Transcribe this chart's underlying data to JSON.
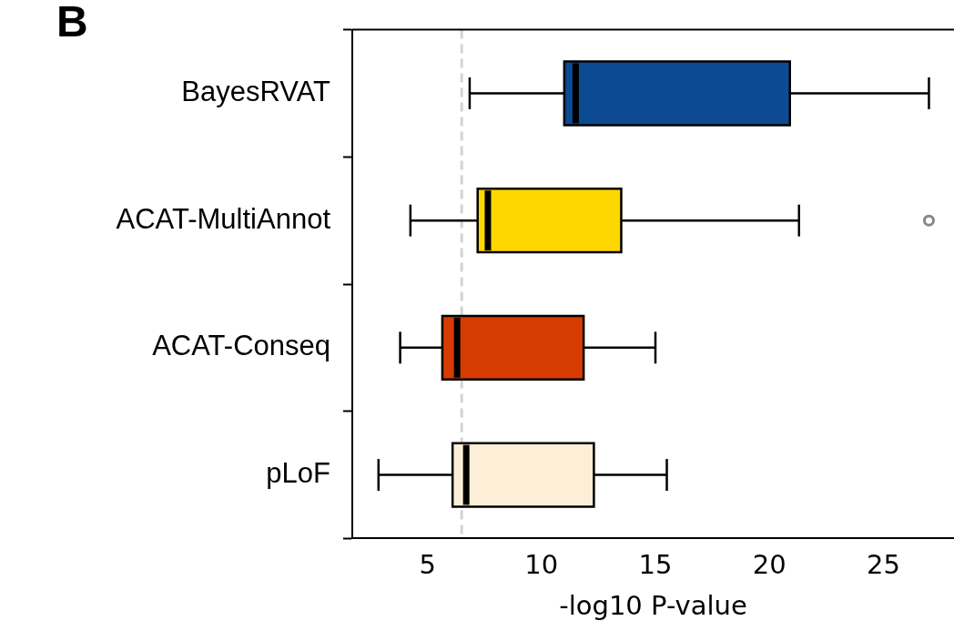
{
  "chart_data": {
    "type": "box",
    "orientation": "horizontal",
    "xlabel": "-log10 P-value",
    "categories": [
      "BayesRVAT",
      "ACAT-MultiAnnot",
      "ACAT-Conseq",
      "pLoF"
    ],
    "colors": [
      "#0d4a94",
      "#ffd700",
      "#d63c00",
      "#fdefd7"
    ],
    "boxes": [
      {
        "low": 6.85,
        "q1": 11.0,
        "median": 11.5,
        "q3": 20.9,
        "high": 27.0
      },
      {
        "low": 4.25,
        "q1": 7.2,
        "median": 7.65,
        "q3": 13.5,
        "high": 21.3,
        "outliers": [
          27.0
        ]
      },
      {
        "low": 3.8,
        "q1": 5.65,
        "median": 6.3,
        "q3": 11.85,
        "high": 15.0
      },
      {
        "low": 2.85,
        "q1": 6.1,
        "median": 6.7,
        "q3": 12.3,
        "high": 15.5
      }
    ],
    "xlim": [
      1.7,
      28.1
    ],
    "xticks": [
      5,
      10,
      15,
      20,
      25
    ],
    "ref_lines": [
      {
        "axis": "x",
        "value": 6.5,
        "color": "#d3d3d3",
        "line_style": "dashed"
      }
    ],
    "annotations": [
      "B"
    ],
    "grid": false,
    "legend": false
  }
}
